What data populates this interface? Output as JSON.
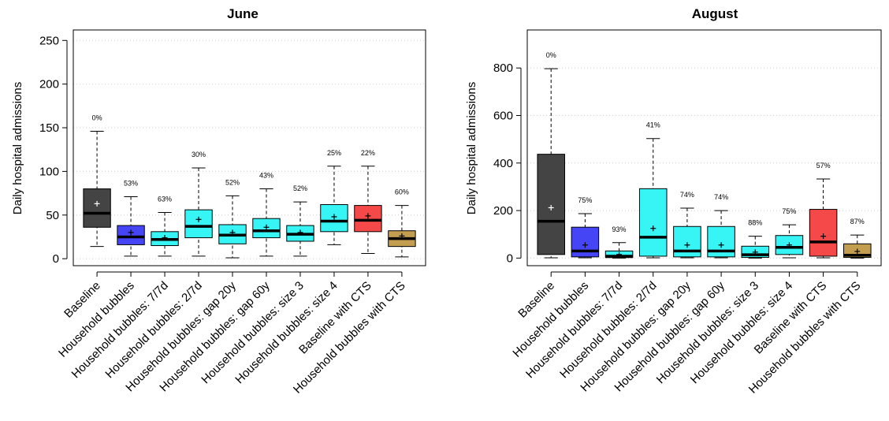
{
  "chart_data": [
    {
      "type": "box",
      "title": "June",
      "ylabel": "Daily hospital admissions",
      "ylim": [
        -8,
        262
      ],
      "yticks": [
        0,
        50,
        100,
        150,
        200,
        250
      ],
      "categories": [
        "Baseline",
        "Household bubbles",
        "Household bubbles: 7/7d",
        "Household bubbles: 2/7d",
        "Household bubbles: gap 20y",
        "Household bubbles: gap 60y",
        "Household bubbles: size 3",
        "Household bubbles: size 4",
        "Baseline with CTS",
        "Household bubbles with CTS"
      ],
      "colors": [
        "#444444",
        "#4545f5",
        "#37f5f5",
        "#37f5f5",
        "#37f5f5",
        "#37f5f5",
        "#37f5f5",
        "#37f5f5",
        "#f54848",
        "#c39e50"
      ],
      "boxes": [
        {
          "min": 14,
          "q1": 36,
          "median": 52,
          "q3": 80,
          "max": 146,
          "mean": 63,
          "label": "0%"
        },
        {
          "min": 3,
          "q1": 16,
          "median": 25,
          "q3": 38,
          "max": 71,
          "mean": 30,
          "label": "53%"
        },
        {
          "min": 3,
          "q1": 15,
          "median": 22,
          "q3": 31,
          "max": 53,
          "mean": 24,
          "label": "63%"
        },
        {
          "min": 3,
          "q1": 24,
          "median": 37,
          "q3": 56,
          "max": 104,
          "mean": 45,
          "label": "30%"
        },
        {
          "min": 1,
          "q1": 17,
          "median": 27,
          "q3": 39,
          "max": 72,
          "mean": 30,
          "label": "52%"
        },
        {
          "min": 3,
          "q1": 24,
          "median": 32,
          "q3": 46,
          "max": 80,
          "mean": 36,
          "label": "43%"
        },
        {
          "min": 3,
          "q1": 20,
          "median": 28,
          "q3": 38,
          "max": 65,
          "mean": 30,
          "label": "52%"
        },
        {
          "min": 16,
          "q1": 31,
          "median": 43,
          "q3": 62,
          "max": 106,
          "mean": 48,
          "label": "25%"
        },
        {
          "min": 6,
          "q1": 31,
          "median": 44,
          "q3": 61,
          "max": 106,
          "mean": 49,
          "label": "22%"
        },
        {
          "min": 2,
          "q1": 14,
          "median": 23,
          "q3": 32,
          "max": 61,
          "mean": 26,
          "label": "60%"
        }
      ],
      "grid": true
    },
    {
      "type": "box",
      "title": "August",
      "ylabel": "Daily hospital admissions",
      "ylim": [
        -32,
        960
      ],
      "yticks": [
        0,
        200,
        400,
        600,
        800
      ],
      "categories": [
        "Baseline",
        "Household bubbles",
        "Household bubbles: 7/7d",
        "Household bubbles: 2/7d",
        "Household bubbles: gap 20y",
        "Household bubbles: gap 60y",
        "Household bubbles: size 3",
        "Household bubbles: size 4",
        "Baseline with CTS",
        "Household bubbles with CTS"
      ],
      "colors": [
        "#444444",
        "#4545f5",
        "#37f5f5",
        "#37f5f5",
        "#37f5f5",
        "#37f5f5",
        "#37f5f5",
        "#37f5f5",
        "#f54848",
        "#c39e50"
      ],
      "boxes": [
        {
          "min": 1,
          "q1": 15,
          "median": 155,
          "q3": 437,
          "max": 797,
          "mean": 212,
          "label": "0%"
        },
        {
          "min": 1,
          "q1": 5,
          "median": 30,
          "q3": 130,
          "max": 187,
          "mean": 55,
          "label": "75%"
        },
        {
          "min": 0,
          "q1": 2,
          "median": 8,
          "q3": 30,
          "max": 65,
          "mean": 15,
          "label": "93%"
        },
        {
          "min": 1,
          "q1": 8,
          "median": 88,
          "q3": 292,
          "max": 503,
          "mean": 125,
          "label": "41%"
        },
        {
          "min": 1,
          "q1": 5,
          "median": 30,
          "q3": 133,
          "max": 210,
          "mean": 55,
          "label": "74%"
        },
        {
          "min": 1,
          "q1": 5,
          "median": 30,
          "q3": 133,
          "max": 200,
          "mean": 55,
          "label": "74%"
        },
        {
          "min": 0,
          "q1": 3,
          "median": 14,
          "q3": 50,
          "max": 92,
          "mean": 25,
          "label": "88%"
        },
        {
          "min": 1,
          "q1": 15,
          "median": 45,
          "q3": 95,
          "max": 140,
          "mean": 55,
          "label": "75%"
        },
        {
          "min": 1,
          "q1": 8,
          "median": 68,
          "q3": 205,
          "max": 333,
          "mean": 92,
          "label": "57%"
        },
        {
          "min": 0,
          "q1": 3,
          "median": 12,
          "q3": 60,
          "max": 97,
          "mean": 28,
          "label": "87%"
        }
      ],
      "grid": true
    }
  ]
}
